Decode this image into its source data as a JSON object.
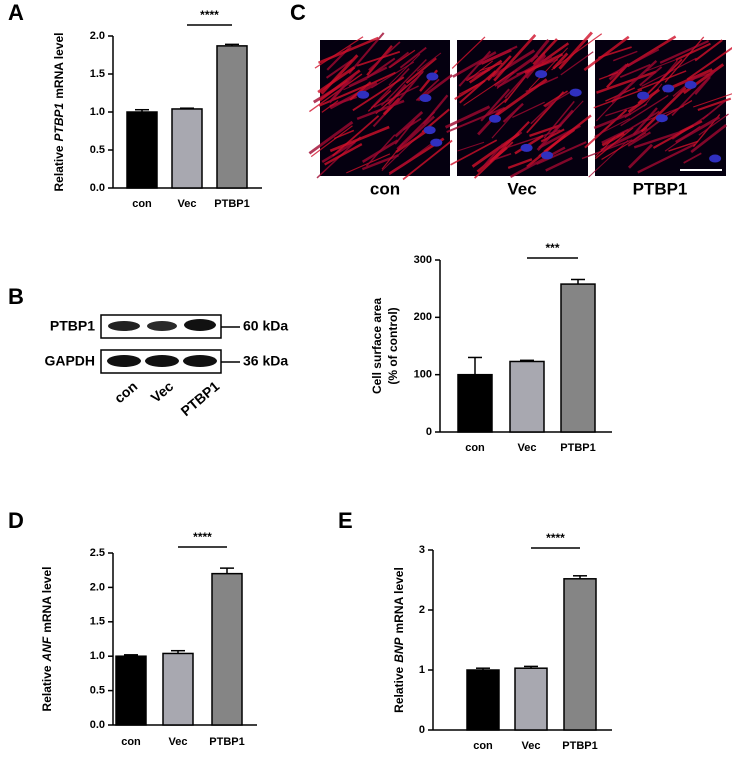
{
  "panels": [
    "A",
    "B",
    "C",
    "D",
    "E"
  ],
  "blot": {
    "rows": [
      "PTBP1",
      "GAPDH"
    ],
    "sizes": [
      "60 kDa",
      "36 kDa"
    ],
    "lanes": [
      "con",
      "Vec",
      "PTBP1"
    ]
  },
  "images": {
    "labels": [
      "con",
      "Vec",
      "PTBP1"
    ]
  },
  "chart_data": [
    {
      "type": "bar",
      "ylabel": [
        "Relative",
        "PTBP1",
        "mRNA level"
      ],
      "categories": [
        "con",
        "Vec",
        "PTBP1"
      ],
      "values": [
        1.0,
        1.04,
        1.87
      ],
      "errors": [
        0.03,
        0.01,
        0.02
      ],
      "colors": [
        "#000000",
        "#a8a8b0",
        "#858585"
      ],
      "ylim": [
        0,
        2
      ],
      "yticks": [
        {
          "value": 0,
          "label": "0.0"
        },
        0.5,
        {
          "value": 1,
          "label": "1.0"
        },
        1.5,
        {
          "value": 2,
          "label": "2.0"
        }
      ],
      "annotation": "****"
    },
    {
      "type": "bar",
      "ylabel": [
        "Cell surface area",
        "(% of control)"
      ],
      "categories": [
        "con",
        "Vec",
        "PTBP1"
      ],
      "values": [
        100,
        123,
        258
      ],
      "errors": [
        30,
        2,
        8
      ],
      "colors": [
        "#000000",
        "#a8a8b0",
        "#858585"
      ],
      "ylim": [
        0,
        300
      ],
      "yticks": [
        0,
        100,
        200,
        300
      ],
      "annotation": "***"
    },
    {
      "type": "bar",
      "ylabel": [
        "Relative",
        "ANF",
        "mRNA level"
      ],
      "categories": [
        "con",
        "Vec",
        "PTBP1"
      ],
      "values": [
        1.0,
        1.04,
        2.2
      ],
      "errors": [
        0.02,
        0.04,
        0.08
      ],
      "colors": [
        "#000000",
        "#a8a8b0",
        "#858585"
      ],
      "ylim": [
        0,
        2.5
      ],
      "yticks": [
        {
          "value": 0,
          "label": "0.0"
        },
        0.5,
        {
          "value": 1,
          "label": "1.0"
        },
        1.5,
        {
          "value": 2,
          "label": "2.0"
        },
        2.5
      ],
      "annotation": "****"
    },
    {
      "type": "bar",
      "ylabel": [
        "Relative",
        "BNP",
        "mRNA level"
      ],
      "categories": [
        "con",
        "Vec",
        "PTBP1"
      ],
      "values": [
        1.0,
        1.03,
        2.52
      ],
      "errors": [
        0.03,
        0.03,
        0.05
      ],
      "colors": [
        "#000000",
        "#a8a8b0",
        "#858585"
      ],
      "ylim": [
        0,
        3
      ],
      "yticks": [
        0,
        1,
        2,
        3
      ],
      "annotation": "****"
    }
  ]
}
